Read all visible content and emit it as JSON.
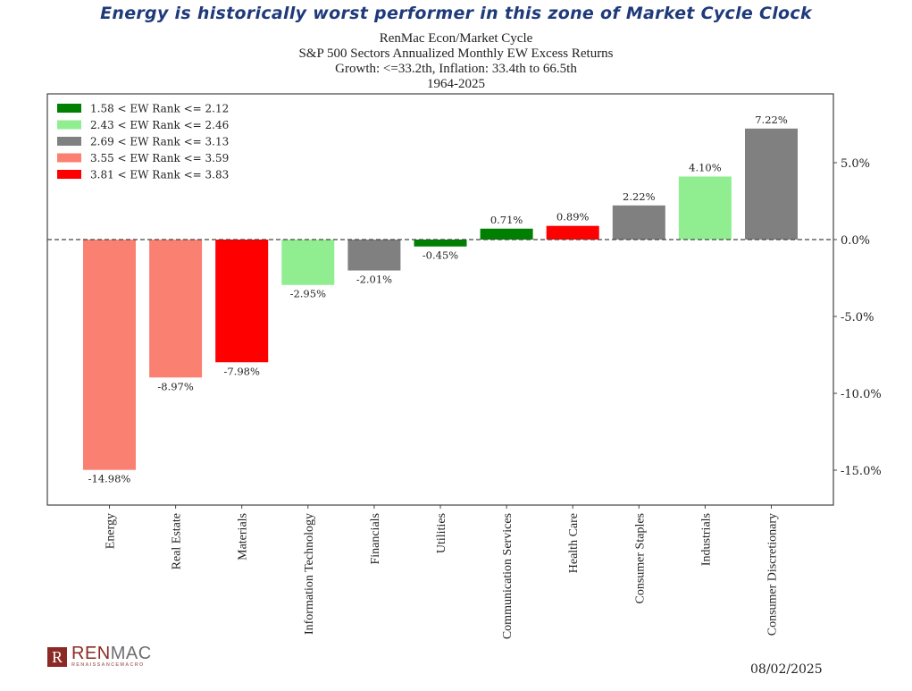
{
  "headline": "Energy is historically worst performer in this zone of Market Cycle Clock",
  "logo": {
    "mark": "R",
    "name_part1": "REN",
    "name_part2": "MAC",
    "tagline": "RENAISSANCEMACRO"
  },
  "date": "08/02/2025",
  "chart_data": {
    "type": "bar",
    "title_lines": [
      "RenMac Econ/Market Cycle",
      "S&P 500 Sectors Annualized Monthly EW Excess Returns",
      "Growth: <=33.2th, Inflation: 33.4th to 66.5th",
      "1964-2025"
    ],
    "xlabel": "",
    "ylabel": "",
    "y_axis_position": "right",
    "ylim": [
      -17.4,
      9.5
    ],
    "yticks": [
      5.0,
      0.0,
      -5.0,
      -10.0,
      -15.0
    ],
    "ytick_labels": [
      "5.0%",
      "0.0%",
      "-5.0%",
      "-10.0%",
      "-15.0%"
    ],
    "zero_line": "dashed",
    "grid": false,
    "legend_position": "top-left",
    "legend": [
      {
        "label": "1.58 < EW Rank <= 2.12",
        "color": "#008000"
      },
      {
        "label": "2.43 < EW Rank <= 2.46",
        "color": "#90ee90"
      },
      {
        "label": "2.69 < EW Rank <= 3.13",
        "color": "#808080"
      },
      {
        "label": "3.55 < EW Rank <= 3.59",
        "color": "#fa8072"
      },
      {
        "label": "3.81 < EW Rank <= 3.83",
        "color": "#ff0000"
      }
    ],
    "categories": [
      "Energy",
      "Real Estate",
      "Materials",
      "Information Technology",
      "Financials",
      "Utilities",
      "Communication Services",
      "Health Care",
      "Consumer Staples",
      "Industrials",
      "Consumer Discretionary"
    ],
    "values": [
      -14.98,
      -8.97,
      -7.98,
      -2.95,
      -2.01,
      -0.45,
      0.71,
      0.89,
      2.22,
      4.1,
      7.22
    ],
    "value_labels": [
      "-14.98%",
      "-8.97%",
      "-7.98%",
      "-2.95%",
      "-2.01%",
      "-0.45%",
      "0.71%",
      "0.89%",
      "2.22%",
      "4.10%",
      "7.22%"
    ],
    "colors": [
      "#fa8072",
      "#fa8072",
      "#ff0000",
      "#90ee90",
      "#808080",
      "#008000",
      "#008000",
      "#ff0000",
      "#808080",
      "#90ee90",
      "#808080"
    ]
  }
}
